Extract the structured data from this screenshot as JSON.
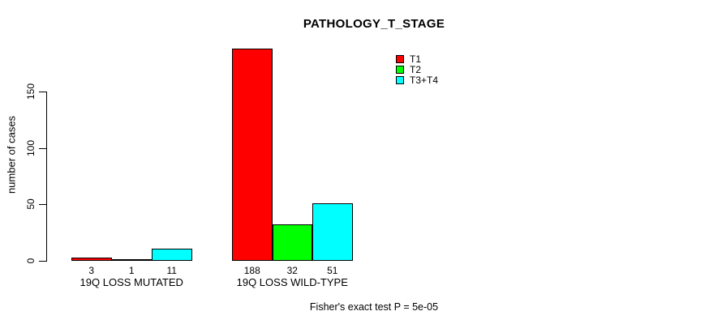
{
  "colors": {
    "background": "#ffffff",
    "text": "#000000",
    "axis": "#000000",
    "bar_border": "#000000"
  },
  "chart_data": {
    "type": "bar",
    "title": "PATHOLOGY_T_STAGE",
    "xlabel": "",
    "ylabel": "number of cases",
    "footnote": "Fisher's exact test P = 5e-05",
    "yticks": [
      0,
      50,
      100,
      150
    ],
    "ylim": [
      0,
      188
    ],
    "grid": false,
    "legend_position": "top-right-inside",
    "categories": [
      "19Q LOSS MUTATED",
      "19Q LOSS WILD-TYPE"
    ],
    "series": [
      {
        "name": "T1",
        "color": "#ff0000",
        "values": [
          3,
          188
        ]
      },
      {
        "name": "T2",
        "color": "#00ff00",
        "values": [
          1,
          32
        ]
      },
      {
        "name": "T3+T4",
        "color": "#00ffff",
        "values": [
          11,
          51
        ]
      }
    ]
  }
}
